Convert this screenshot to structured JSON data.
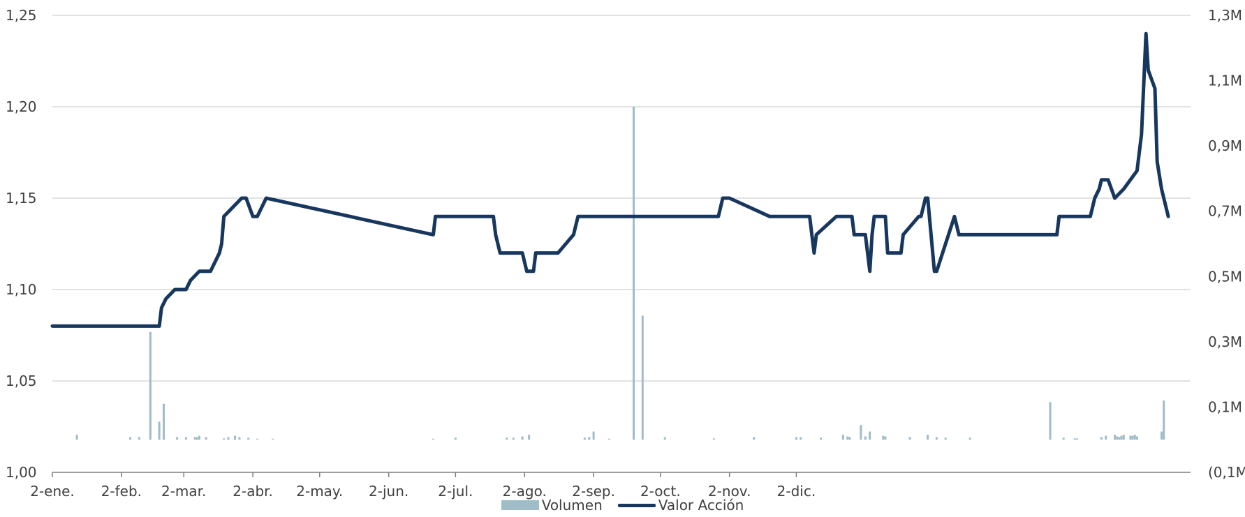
{
  "chart_data": {
    "type": "line",
    "colors": {
      "price": "#17375e",
      "volume": "#9fbcc8",
      "grid": "#d9d9d9",
      "axis": "#7f7f7f"
    },
    "x_ticks": [
      "2-ene.",
      "2-feb.",
      "2-mar.",
      "2-abr.",
      "2-may.",
      "2-jun.",
      "2-jul.",
      "2-ago.",
      "2-sep.",
      "2-oct.",
      "2-nov.",
      "2-dic."
    ],
    "y_left": {
      "ticks": [
        "1,00",
        "1,05",
        "1,10",
        "1,15",
        "1,20",
        "1,25"
      ],
      "ylim": [
        1.0,
        1.25
      ]
    },
    "y_right": {
      "ticks": [
        "(0,1M)",
        "0,1M",
        "0,3M",
        "0,5M",
        "0,7M",
        "0,9M",
        "1,1M",
        "1,3M"
      ],
      "ylim": [
        -0.1,
        1.3
      ],
      "unit": "M"
    },
    "legend": [
      "Volumen",
      "Valor Acción"
    ],
    "series": [
      {
        "name": "Valor Acción",
        "type": "line",
        "axis": "left",
        "x_day": [
          0,
          48,
          49,
          51,
          55,
          60,
          62,
          66,
          71,
          75,
          76,
          77,
          85,
          87,
          90,
          92,
          96,
          171,
          172,
          174,
          183,
          197,
          198,
          199,
          201,
          211,
          213,
          216,
          217,
          218,
          225,
          226,
          227,
          234,
          236,
          240,
          299,
          301,
          302,
          304,
          322,
          324,
          340,
          341,
          342,
          343,
          352,
          353,
          354,
          355,
          358,
          359,
          360,
          361,
          364,
          365,
          367,
          368,
          369,
          372,
          374,
          375,
          381,
          382,
          389,
          390,
          392,
          392,
          393,
          396,
          397,
          405,
          407,
          451,
          452,
          453,
          455,
          457,
          461,
          466,
          468,
          470,
          471,
          473,
          474,
          477,
          481,
          487,
          489,
          491,
          492,
          495,
          496,
          498,
          501
        ],
        "values": [
          1.08,
          1.08,
          1.09,
          1.095,
          1.1,
          1.1,
          1.105,
          1.11,
          1.11,
          1.12,
          1.125,
          1.14,
          1.15,
          1.15,
          1.14,
          1.14,
          1.15,
          1.13,
          1.14,
          1.14,
          1.14,
          1.14,
          1.14,
          1.13,
          1.12,
          1.12,
          1.11,
          1.11,
          1.12,
          1.12,
          1.12,
          1.12,
          1.12,
          1.13,
          1.14,
          1.14,
          1.14,
          1.15,
          1.15,
          1.15,
          1.14,
          1.14,
          1.14,
          1.13,
          1.12,
          1.13,
          1.14,
          1.14,
          1.14,
          1.14,
          1.14,
          1.14,
          1.13,
          1.13,
          1.13,
          1.13,
          1.11,
          1.13,
          1.14,
          1.14,
          1.14,
          1.12,
          1.12,
          1.13,
          1.14,
          1.14,
          1.15,
          1.15,
          1.15,
          1.11,
          1.11,
          1.14,
          1.13,
          1.13,
          1.14,
          1.14,
          1.14,
          1.14,
          1.14,
          1.14,
          1.15,
          1.155,
          1.16,
          1.16,
          1.16,
          1.15,
          1.155,
          1.165,
          1.185,
          1.24,
          1.22,
          1.21,
          1.17,
          1.155,
          1.14
        ]
      },
      {
        "name": "Volumen",
        "type": "bar",
        "axis": "right",
        "x_day": [
          11,
          35,
          39,
          44,
          48,
          50,
          56,
          60,
          64,
          65,
          66,
          69,
          77,
          79,
          82,
          84,
          88,
          92,
          99,
          171,
          181,
          204,
          207,
          211,
          214,
          239,
          241,
          243,
          250,
          261,
          265,
          275,
          297,
          315,
          334,
          336,
          345,
          355,
          357,
          358,
          358,
          363,
          365,
          367,
          373,
          374,
          385,
          393,
          397,
          401,
          412,
          448,
          454,
          459,
          460,
          471,
          473,
          477,
          478,
          479,
          480,
          481,
          484,
          485,
          486,
          487,
          498,
          499
        ],
        "values": [
          0.015,
          0.008,
          0.008,
          0.33,
          0.055,
          0.11,
          0.008,
          0.008,
          0.008,
          0.008,
          0.012,
          0.008,
          0.004,
          0.008,
          0.012,
          0.008,
          0.006,
          0.003,
          0.003,
          0.003,
          0.006,
          0.006,
          0.006,
          0.01,
          0.015,
          0.006,
          0.008,
          0.025,
          0.003,
          1.02,
          0.38,
          0.008,
          0.004,
          0.008,
          0.008,
          0.008,
          0.006,
          0.015,
          0.01,
          0.008,
          0.008,
          0.045,
          0.01,
          0.025,
          0.012,
          0.01,
          0.008,
          0.015,
          0.008,
          0.006,
          0.006,
          0.115,
          0.006,
          0.004,
          0.004,
          0.008,
          0.012,
          0.015,
          0.01,
          0.008,
          0.012,
          0.015,
          0.012,
          0.012,
          0.015,
          0.01,
          0.025,
          0.12
        ]
      }
    ]
  }
}
